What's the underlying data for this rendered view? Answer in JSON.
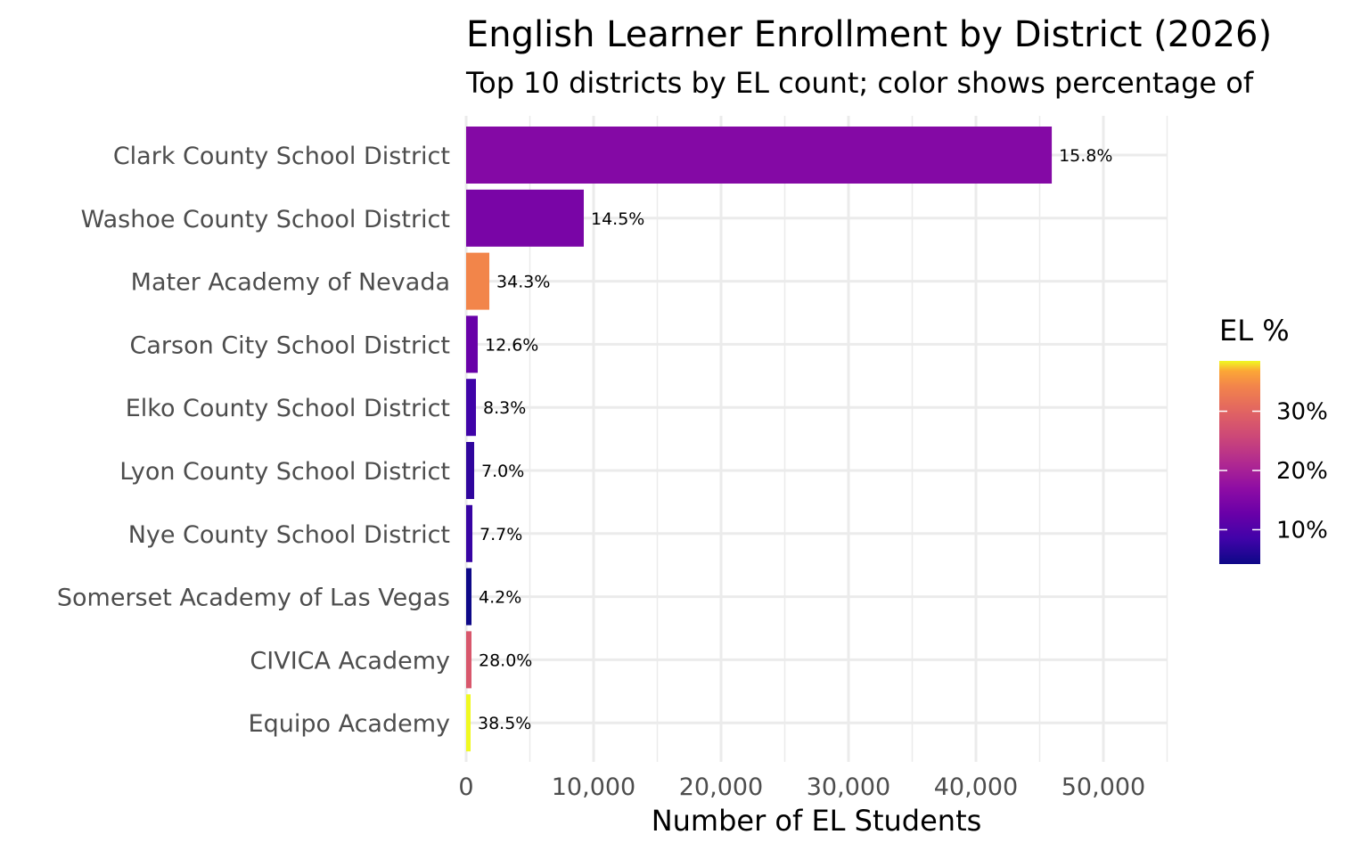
{
  "chart_data": {
    "type": "bar",
    "orientation": "horizontal",
    "title": "English Learner Enrollment by District (2026)",
    "subtitle": "Top 10 districts by EL count; color shows percentage of",
    "xlabel": "Number of EL Students",
    "ylabel": "",
    "xlim": [
      0,
      55000
    ],
    "x_ticks": [
      0,
      10000,
      20000,
      30000,
      40000,
      50000
    ],
    "x_tick_labels": [
      "0",
      "10,000",
      "20,000",
      "30,000",
      "40,000",
      "50,000"
    ],
    "grid": true,
    "categories": [
      "Clark County School District",
      "Washoe County School District",
      "Mater Academy of Nevada",
      "Carson City School District",
      "Elko County School District",
      "Lyon County School District",
      "Nye County School District",
      "Somerset Academy of Las Vegas",
      "CIVICA Academy",
      "Equipo Academy"
    ],
    "values": [
      45950,
      9230,
      1820,
      910,
      770,
      630,
      490,
      420,
      420,
      350
    ],
    "el_percent": [
      15.8,
      14.5,
      34.3,
      12.6,
      8.3,
      7.0,
      7.7,
      4.2,
      28.0,
      38.5
    ],
    "data_labels": [
      "15.8%",
      "14.5%",
      "34.3%",
      "12.6%",
      "8.3%",
      "7.0%",
      "7.7%",
      "4.2%",
      "28.0%",
      "38.5%"
    ],
    "colorscale": "plasma",
    "legend": {
      "title": "EL %",
      "placement": "right",
      "range": [
        4.2,
        38.5
      ],
      "ticks": [
        10,
        20,
        30
      ],
      "tick_labels": [
        "10%",
        "20%",
        "30%"
      ]
    }
  }
}
